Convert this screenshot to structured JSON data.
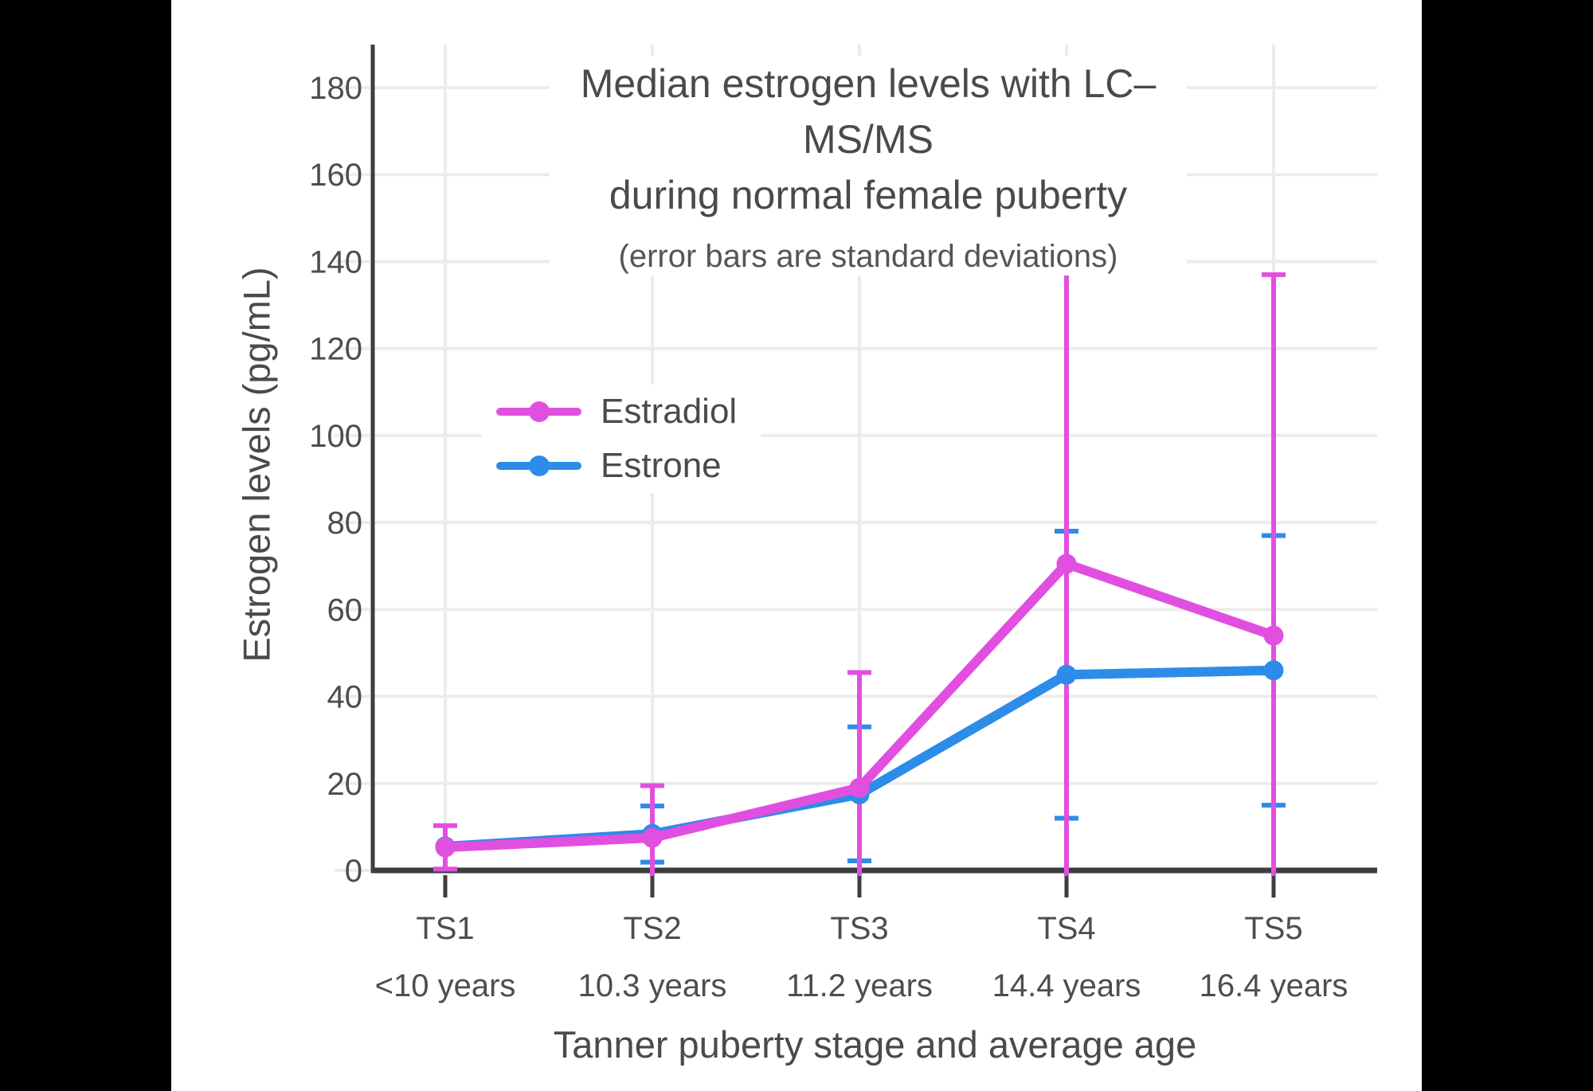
{
  "frame": {
    "background": "#000000",
    "panel_background": "#ffffff"
  },
  "chart_data": {
    "type": "line",
    "title_line1": "Median estrogen levels with LC–MS/MS",
    "title_line2": "during normal female puberty",
    "subtitle": "(error bars are standard deviations)",
    "xlabel": "Tanner puberty stage and average age",
    "ylabel": "Estrogen levels (pg/mL)",
    "categories": [
      "TS1",
      "TS2",
      "TS3",
      "TS4",
      "TS5"
    ],
    "category_sublabels": [
      "<10 years",
      "10.3 years",
      "11.2 years",
      "14.4 years",
      "16.4 years"
    ],
    "yticks": [
      0,
      20,
      40,
      60,
      80,
      100,
      120,
      140,
      160,
      180
    ],
    "ylim": [
      0,
      190
    ],
    "grid": true,
    "legend_position": "inside-upper-left",
    "error_bars": "standard deviations, clipped at 0",
    "colors": {
      "axis": "#3d3d3d",
      "grid": "#ececec",
      "tick_text": "#4d4d4d"
    },
    "series": [
      {
        "name": "Estrone",
        "color": "#2d8ce8",
        "values": [
          5.5,
          8.4,
          17.5,
          45,
          46
        ],
        "error_high": [
          null,
          14.8,
          33,
          78,
          77
        ],
        "error_low": [
          null,
          1.9,
          2.2,
          12,
          15
        ],
        "cap_high": [
          0,
          1,
          1,
          1,
          1
        ],
        "cap_low": [
          0,
          1,
          1,
          1,
          1
        ]
      },
      {
        "name": "Estradiol",
        "color": "#e14fe1",
        "values": [
          5.3,
          7.5,
          19,
          70.5,
          54
        ],
        "error_high": [
          10.3,
          19.5,
          45.5,
          144,
          137
        ],
        "error_low": [
          0.3,
          -4.5,
          -7.5,
          -3,
          -29
        ],
        "cap_high": [
          1,
          1,
          1,
          0,
          1
        ],
        "cap_low": [
          1,
          0,
          0,
          0,
          0
        ]
      }
    ]
  },
  "legend": {
    "items": [
      {
        "label": "Estradiol",
        "color": "#e14fe1"
      },
      {
        "label": "Estrone",
        "color": "#2d8ce8"
      }
    ]
  }
}
